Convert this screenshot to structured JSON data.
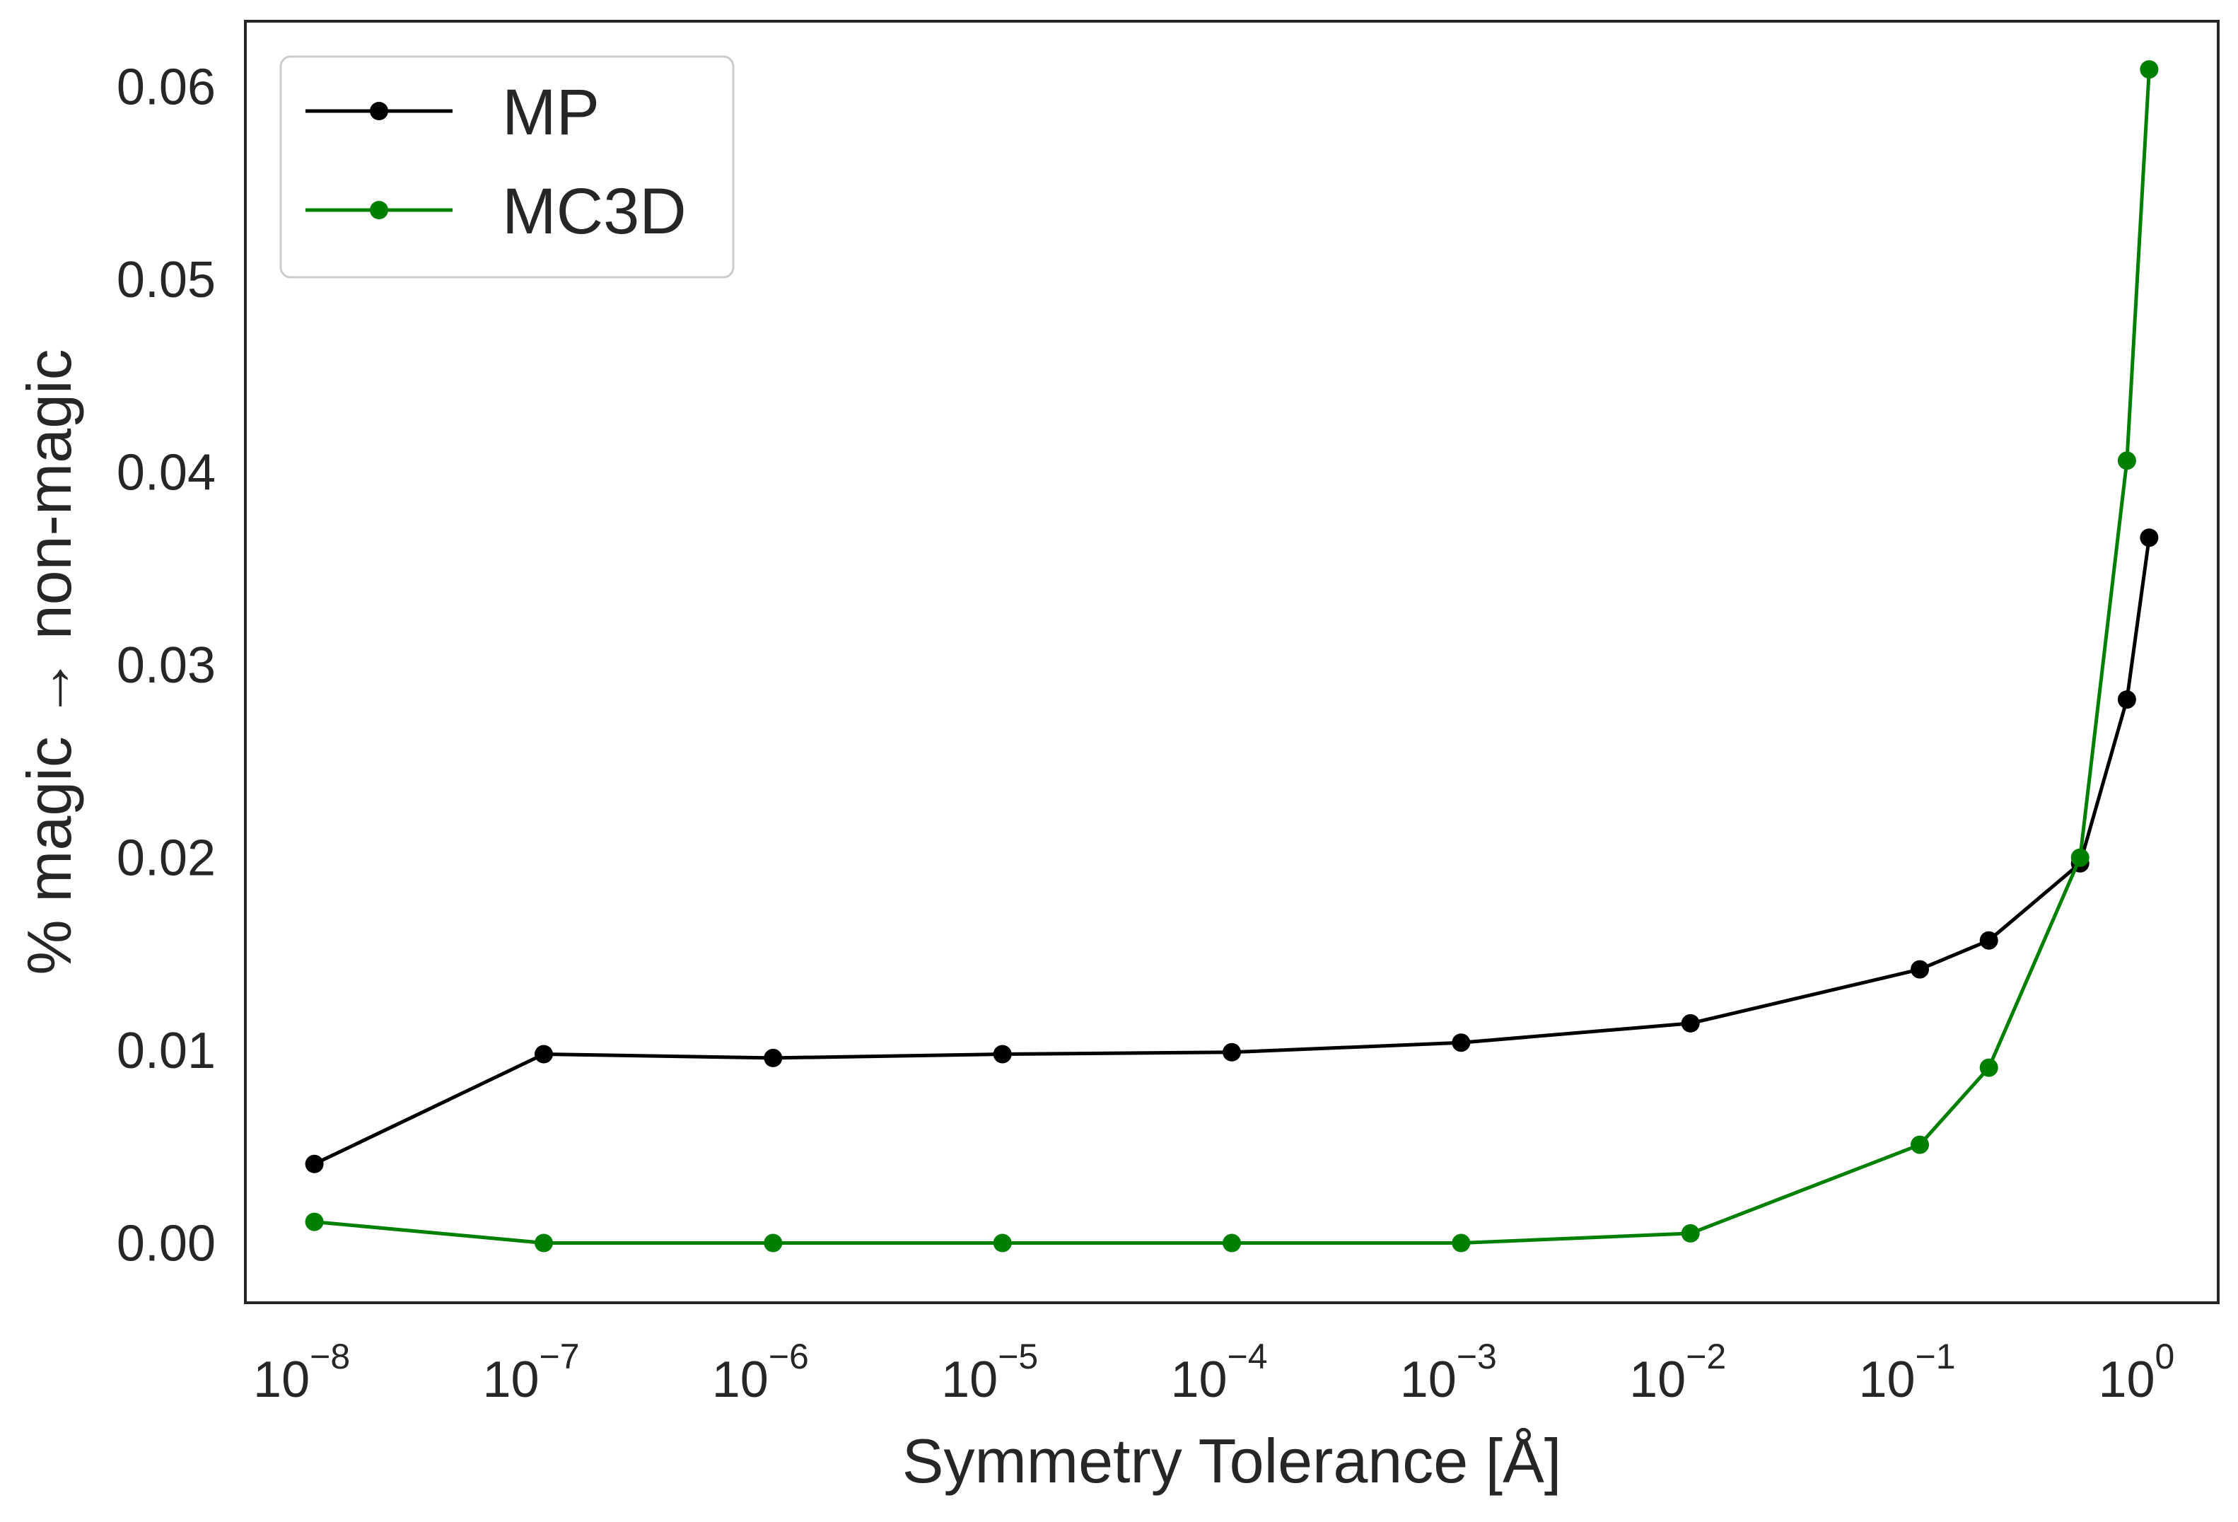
{
  "chart_data": {
    "type": "line",
    "title": "",
    "xlabel": "Symmetry Tolerance [Å]",
    "ylabel": "% magic → non-magic",
    "xscale": "log",
    "xlim": [
      5e-09,
      2
    ],
    "ylim": [
      -0.0031,
      0.0634
    ],
    "x_ticks": [
      {
        "value": 1e-08,
        "base": "10",
        "exp": "−8"
      },
      {
        "value": 1e-07,
        "base": "10",
        "exp": "−7"
      },
      {
        "value": 1e-06,
        "base": "10",
        "exp": "−6"
      },
      {
        "value": 1e-05,
        "base": "10",
        "exp": "−5"
      },
      {
        "value": 0.0001,
        "base": "10",
        "exp": "−4"
      },
      {
        "value": 0.001,
        "base": "10",
        "exp": "−3"
      },
      {
        "value": 0.01,
        "base": "10",
        "exp": "−2"
      },
      {
        "value": 0.1,
        "base": "10",
        "exp": "−1"
      },
      {
        "value": 1,
        "base": "10",
        "exp": "0"
      }
    ],
    "y_ticks": [
      {
        "value": 0.0,
        "label": "0.00"
      },
      {
        "value": 0.01,
        "label": "0.01"
      },
      {
        "value": 0.02,
        "label": "0.02"
      },
      {
        "value": 0.03,
        "label": "0.03"
      },
      {
        "value": 0.04,
        "label": "0.04"
      },
      {
        "value": 0.05,
        "label": "0.05"
      },
      {
        "value": 0.06,
        "label": "0.06"
      }
    ],
    "grid": false,
    "legend_position": "top-left",
    "series": [
      {
        "name": "MP",
        "color": "#000000",
        "x": [
          1e-08,
          1e-07,
          1e-06,
          1e-05,
          0.0001,
          0.001,
          0.01,
          0.1,
          0.2,
          0.5,
          0.8,
          1.0
        ],
        "y": [
          0.0041,
          0.0098,
          0.0096,
          0.0098,
          0.0099,
          0.0104,
          0.0114,
          0.0142,
          0.0157,
          0.0197,
          0.0282,
          0.0366
        ]
      },
      {
        "name": "MC3D",
        "color": "#008000",
        "x": [
          1e-08,
          1e-07,
          1e-06,
          1e-05,
          0.0001,
          0.001,
          0.01,
          0.1,
          0.2,
          0.5,
          0.8,
          1.0
        ],
        "y": [
          0.0011,
          0.0,
          0.0,
          0.0,
          0.0,
          0.0,
          0.0005,
          0.0051,
          0.0091,
          0.02,
          0.0406,
          0.0609
        ]
      }
    ]
  }
}
